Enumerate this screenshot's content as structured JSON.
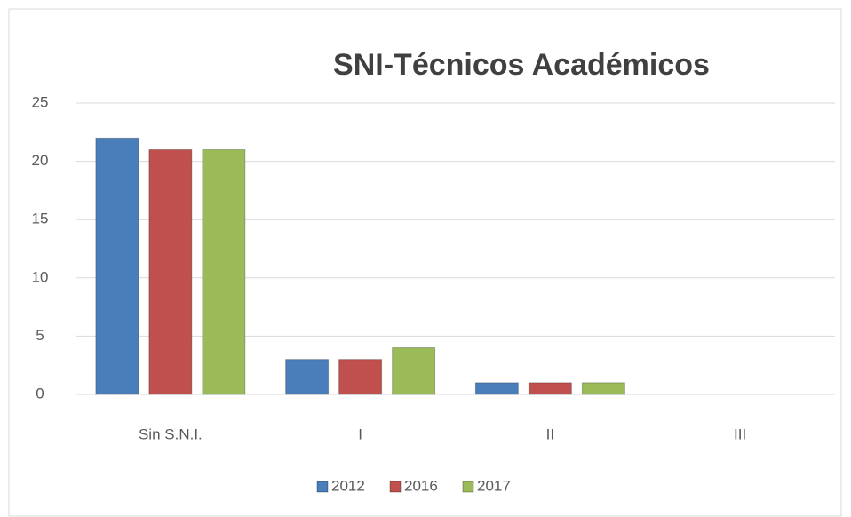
{
  "chart_data": {
    "type": "bar",
    "title": "SNI-Técnicos Académicos",
    "categories": [
      "Sin S.N.I.",
      "I",
      "II",
      "III"
    ],
    "series": [
      {
        "name": "2012",
        "color": "#4a7ebb",
        "values": [
          22,
          3,
          1,
          0
        ]
      },
      {
        "name": "2016",
        "color": "#c0504d",
        "values": [
          21,
          3,
          1,
          0
        ]
      },
      {
        "name": "2017",
        "color": "#9bbb59",
        "values": [
          21,
          4,
          1,
          0
        ]
      }
    ],
    "ylim": [
      0,
      25
    ],
    "yticks": [
      0,
      5,
      10,
      15,
      20,
      25
    ],
    "grid": true,
    "legend": "bottom"
  }
}
